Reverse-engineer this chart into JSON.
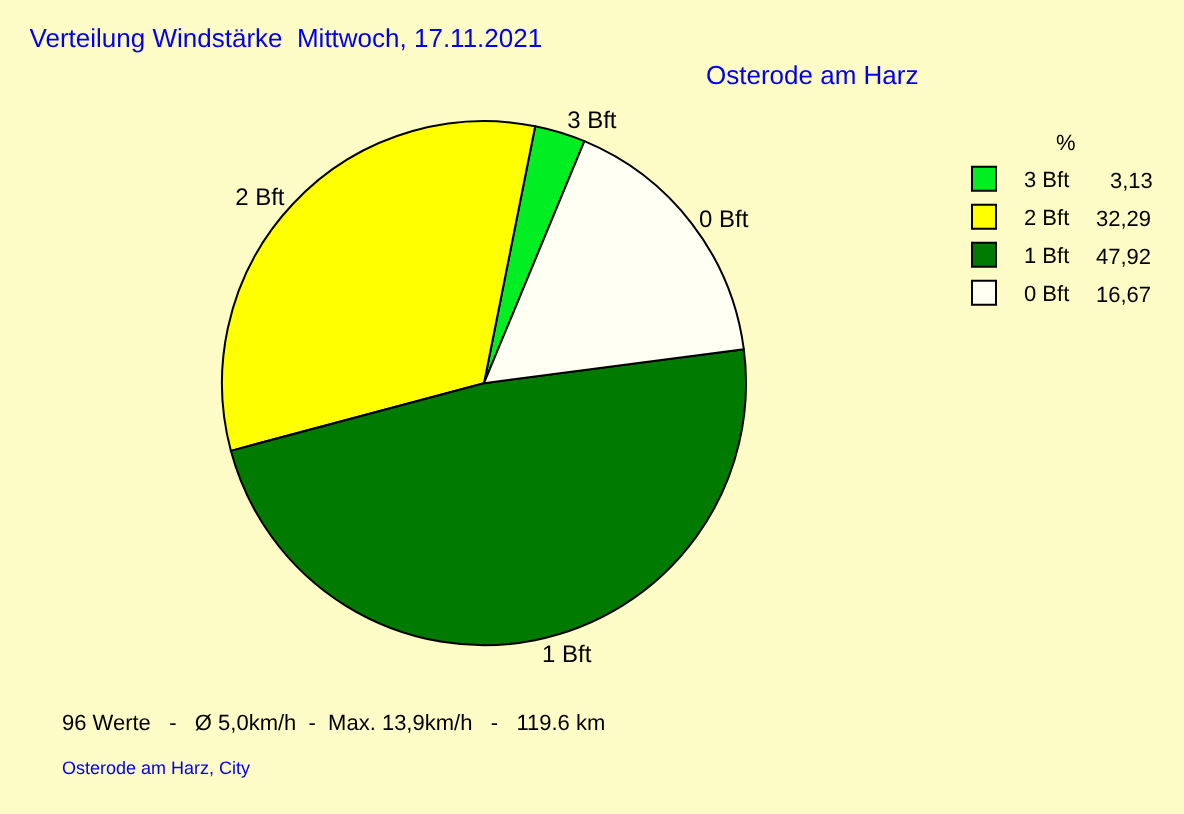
{
  "chart_data": {
    "type": "pie",
    "title": "Verteilung Windstärke  Mittwoch, 17.11.2021",
    "subtitle": "Osterode am Harz",
    "legend_title": "%",
    "legend": "top right",
    "categories": [
      "3 Bft",
      "2 Bft",
      "1 Bft",
      "0 Bft"
    ],
    "values": [
      3.13,
      32.29,
      47.92,
      16.67
    ],
    "value_labels": [
      "3,13",
      "32,29",
      "47,92",
      "16,67"
    ],
    "colors": [
      "#00ee22",
      "#ffff00",
      "#007a00",
      "#fffff4"
    ],
    "annotations": [
      "96 Werte   -   Ø 5,0km/h  -  Max. 13,9km/h   -   119.6 km",
      "Osterode am Harz, City"
    ]
  }
}
